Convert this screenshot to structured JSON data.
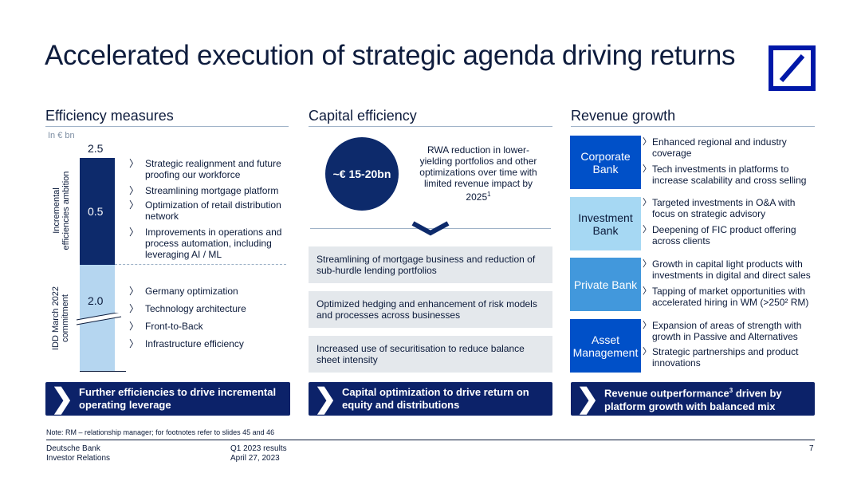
{
  "title": "Accelerated execution of strategic agenda driving returns",
  "logo": {
    "name": "deutsche-bank-logo",
    "color": "#0018a8"
  },
  "efficiency": {
    "heading": "Efficiency measures",
    "unit": "In € bn",
    "total": "2.5",
    "top_value": "0.5",
    "bottom_value": "2.0",
    "axis_top_label_1": "Incremental",
    "axis_top_label_2": "efficiencies ambition",
    "axis_bottom_label_1": "IDD March 2022",
    "axis_bottom_label_2": "commitment",
    "top_bullets": [
      "Strategic realignment and future proofing our workforce",
      "Streamlining mortgage platform",
      "Optimization of retail distribution network",
      "Improvements in operations and process automation, including leveraging AI / ML"
    ],
    "bottom_bullets": [
      "Germany optimization",
      "Technology architecture",
      "Front-to-Back",
      "Infrastructure efficiency"
    ],
    "footer": "Further efficiencies to drive incremental operating leverage"
  },
  "capital": {
    "heading": "Capital efficiency",
    "circle": "~€ 15-20bn",
    "rwa_text": "RWA reduction in lower-yielding portfolios and other optimizations over time with limited revenue impact by 2025",
    "rwa_sup": "1",
    "boxes": [
      "Streamlining of mortgage business and reduction of sub-hurdle lending portfolios",
      "Optimized hedging and enhancement of risk models and processes across businesses",
      "Increased use of securitisation to reduce balance sheet intensity"
    ],
    "footer": "Capital optimization to drive return on equity and distributions"
  },
  "revenue": {
    "heading": "Revenue growth",
    "segments": [
      {
        "label": "Corporate Bank",
        "bullets": [
          "Enhanced regional and industry coverage",
          "Tech investments in platforms to increase scalability and cross selling"
        ]
      },
      {
        "label": "Investment Bank",
        "bullets": [
          "Targeted investments in O&A with focus on strategic advisory",
          "Deepening of FIC product offering across clients"
        ]
      },
      {
        "label": "Private Bank",
        "bullets": [
          "Growth in capital light products with investments in digital and direct sales",
          "Tapping of market opportunities with accelerated hiring in WM (>250² RM)"
        ]
      },
      {
        "label": "Asset Management",
        "bullets": [
          "Expansion of areas of strength with growth in Passive and Alternatives",
          "Strategic partnerships and product innovations"
        ]
      }
    ],
    "footer_pre": "Revenue outperformance",
    "footer_sup": "3",
    "footer_post": " driven by platform growth with balanced mix"
  },
  "note": "Note: RM – relationship manager; for footnotes refer to slides 45 and 46",
  "footer": {
    "company": "Deutsche Bank",
    "dept": "Investor Relations",
    "report": "Q1 2023 results",
    "date": "April 27, 2023",
    "page": "7"
  },
  "colors": {
    "navy": "#0d2a6b",
    "footer_navy": "#0c2269",
    "light_blue": "#b5d6f0",
    "grey_box": "#e4e8ec",
    "corporate": "#0050c8",
    "investment": "#a6d8f3",
    "private": "#4298dc",
    "asset": "#0050c8"
  }
}
